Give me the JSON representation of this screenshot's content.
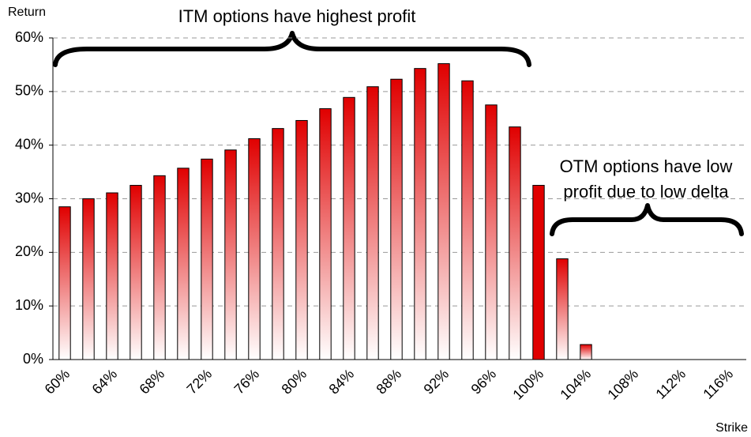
{
  "chart_data": {
    "type": "bar",
    "y_label": "Return",
    "x_label": "Strike",
    "annotations": [
      "ITM options have highest profit",
      [
        "OTM options have low",
        "profit due to low delta"
      ]
    ],
    "categories": [
      "60%",
      null,
      "64%",
      null,
      "68%",
      null,
      "72%",
      null,
      "76%",
      null,
      "80%",
      null,
      "84%",
      null,
      "88%",
      null,
      "92%",
      null,
      "96%",
      null,
      "100%",
      null,
      "104%",
      null,
      "108%",
      null,
      "112%",
      null,
      "116%"
    ],
    "values": [
      28.5,
      30,
      31.1,
      32.5,
      34.3,
      35.7,
      37.4,
      39.1,
      41.2,
      43.1,
      44.6,
      46.8,
      48.9,
      50.9,
      52.3,
      54.3,
      55.2,
      52,
      47.5,
      43.4,
      32.5,
      18.8,
      2.8,
      0,
      0,
      0,
      0,
      0,
      0
    ],
    "colors": [
      "gradient",
      "gradient",
      "gradient",
      "gradient",
      "gradient",
      "gradient",
      "gradient",
      "gradient",
      "gradient",
      "gradient",
      "gradient",
      "gradient",
      "gradient",
      "gradient",
      "gradient",
      "gradient",
      "gradient",
      "gradient",
      "gradient",
      "gradient",
      "#e00000",
      "gradient",
      "gradient",
      "gradient",
      "gradient",
      "gradient",
      "gradient",
      "gradient",
      "gradient"
    ],
    "color": "#e00000",
    "ylim": [
      0,
      60
    ],
    "yticks": [
      {
        "value": 0,
        "label": "0%"
      },
      {
        "value": 10,
        "label": "10%"
      },
      {
        "value": 20,
        "label": "20%"
      },
      {
        "value": 30,
        "label": "30%"
      },
      {
        "value": 40,
        "label": "40%"
      },
      {
        "value": 50,
        "label": "50%"
      },
      {
        "value": 60,
        "label": "60%"
      }
    ],
    "grid": true
  }
}
